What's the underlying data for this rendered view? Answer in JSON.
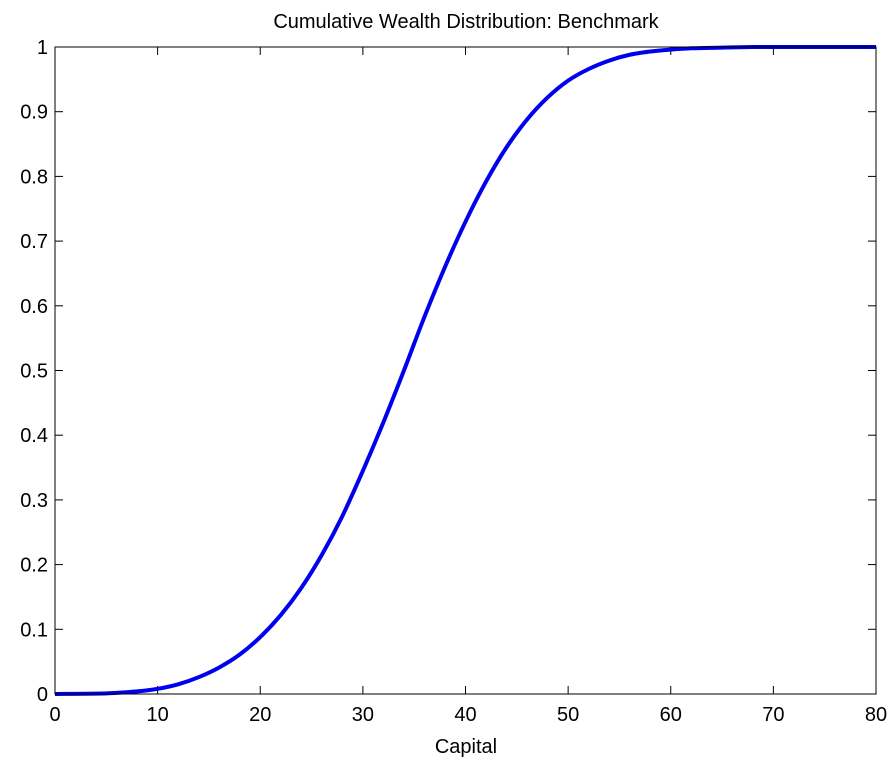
{
  "chart_data": {
    "type": "line",
    "title": "Cumulative Wealth Distribution: Benchmark",
    "xlabel": "Capital",
    "ylabel": "",
    "xlim": [
      0,
      80
    ],
    "ylim": [
      0,
      1
    ],
    "xticks": [
      0,
      10,
      20,
      30,
      40,
      50,
      60,
      70,
      80
    ],
    "yticks": [
      0,
      0.1,
      0.2,
      0.3,
      0.4,
      0.5,
      0.6,
      0.7,
      0.8,
      0.9,
      1
    ],
    "xtick_labels": [
      "0",
      "10",
      "20",
      "30",
      "40",
      "50",
      "60",
      "70",
      "80"
    ],
    "ytick_labels": [
      "0",
      "0.1",
      "0.2",
      "0.3",
      "0.4",
      "0.5",
      "0.6",
      "0.7",
      "0.8",
      "0.9",
      "1"
    ],
    "grid": false,
    "legend": "none",
    "series": [
      {
        "color": "#0000ee",
        "x": [
          0,
          5,
          8,
          10,
          12,
          14,
          16,
          18,
          20,
          22,
          24,
          26,
          28,
          30,
          32,
          34,
          36,
          38,
          40,
          42,
          44,
          46,
          48,
          50,
          52,
          54,
          56,
          58,
          60,
          62,
          65,
          68,
          70,
          75,
          80
        ],
        "y": [
          0,
          0.001,
          0.004,
          0.008,
          0.015,
          0.026,
          0.041,
          0.061,
          0.088,
          0.122,
          0.164,
          0.215,
          0.275,
          0.345,
          0.42,
          0.5,
          0.583,
          0.66,
          0.73,
          0.792,
          0.845,
          0.888,
          0.922,
          0.948,
          0.966,
          0.979,
          0.988,
          0.993,
          0.996,
          0.998,
          0.999,
          1,
          1,
          1,
          1
        ]
      }
    ]
  }
}
